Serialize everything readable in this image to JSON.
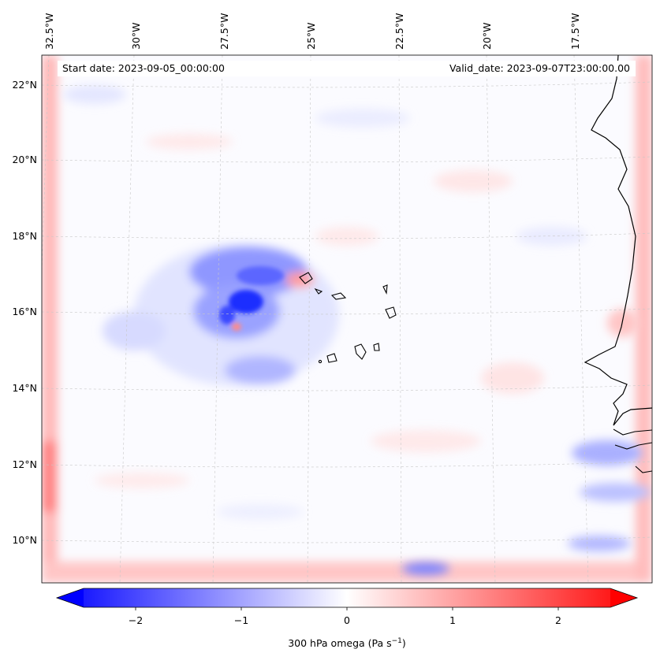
{
  "map": {
    "start_date_label": "Start date: 2023-09-05_00:00:00",
    "valid_date_label": "Valid_date: 2023-09-07T23:00:00.00",
    "lon_ticks": [
      "32.5°W",
      "30°W",
      "27.5°W",
      "25°W",
      "22.5°W",
      "20°W",
      "17.5°W"
    ],
    "lat_ticks": [
      "22°N",
      "20°N",
      "18°N",
      "16°N",
      "14°N",
      "12°N",
      "10°N"
    ]
  },
  "colorbar": {
    "ticks": [
      "−2",
      "−1",
      "0",
      "1",
      "2"
    ],
    "label_main": "300 hPa omega (Pa s",
    "label_exp": "−1",
    "label_end": ")",
    "colors": {
      "neg": "#0000ff",
      "mid": "#ffffff",
      "pos": "#ff0000"
    }
  }
}
